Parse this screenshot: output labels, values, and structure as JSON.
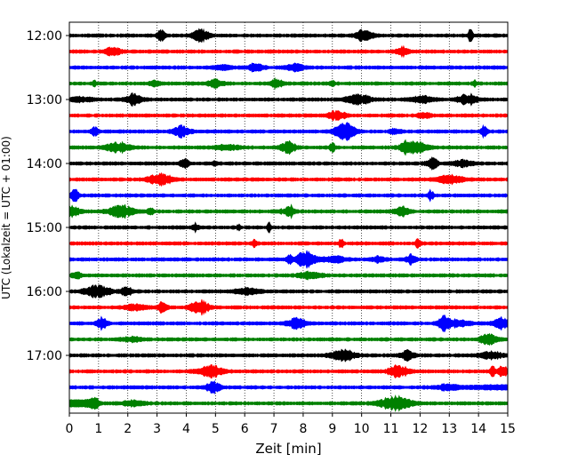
{
  "chart_data": {
    "type": "line",
    "title": "",
    "xlabel": "Zeit  [min]",
    "ylabel": "UTC (Lokalzeit = UTC + 01:00)",
    "xlim": [
      0,
      15
    ],
    "x_ticks": [
      0,
      1,
      2,
      3,
      4,
      5,
      6,
      7,
      8,
      9,
      10,
      11,
      12,
      13,
      14,
      15
    ],
    "x_tick_labels": [
      "0",
      "1",
      "2",
      "3",
      "4",
      "5",
      "6",
      "7",
      "8",
      "9",
      "10",
      "11",
      "12",
      "13",
      "14",
      "15"
    ],
    "y_tick_labels": [
      "12:00",
      "13:00",
      "14:00",
      "15:00",
      "16:00",
      "17:00"
    ],
    "grid": "vertical dotted",
    "legend": "none",
    "trace_interval_min": 15,
    "trace_colors": [
      "#000000",
      "#ff0000",
      "#0000ff",
      "#008000"
    ],
    "traces": [
      {
        "start": "12:00",
        "color": "#000000"
      },
      {
        "start": "12:15",
        "color": "#ff0000"
      },
      {
        "start": "12:30",
        "color": "#0000ff"
      },
      {
        "start": "12:45",
        "color": "#008000"
      },
      {
        "start": "13:00",
        "color": "#000000"
      },
      {
        "start": "13:15",
        "color": "#ff0000"
      },
      {
        "start": "13:30",
        "color": "#0000ff"
      },
      {
        "start": "13:45",
        "color": "#008000"
      },
      {
        "start": "14:00",
        "color": "#000000"
      },
      {
        "start": "14:15",
        "color": "#ff0000"
      },
      {
        "start": "14:30",
        "color": "#0000ff"
      },
      {
        "start": "14:45",
        "color": "#008000"
      },
      {
        "start": "15:00",
        "color": "#000000"
      },
      {
        "start": "15:15",
        "color": "#ff0000"
      },
      {
        "start": "15:30",
        "color": "#0000ff"
      },
      {
        "start": "15:45",
        "color": "#008000"
      },
      {
        "start": "16:00",
        "color": "#000000"
      },
      {
        "start": "16:15",
        "color": "#ff0000"
      },
      {
        "start": "16:30",
        "color": "#0000ff"
      },
      {
        "start": "16:45",
        "color": "#008000"
      },
      {
        "start": "17:00",
        "color": "#000000"
      },
      {
        "start": "17:15",
        "color": "#ff0000"
      },
      {
        "start": "17:30",
        "color": "#0000ff"
      },
      {
        "start": "17:45",
        "color": "#008000"
      }
    ]
  }
}
